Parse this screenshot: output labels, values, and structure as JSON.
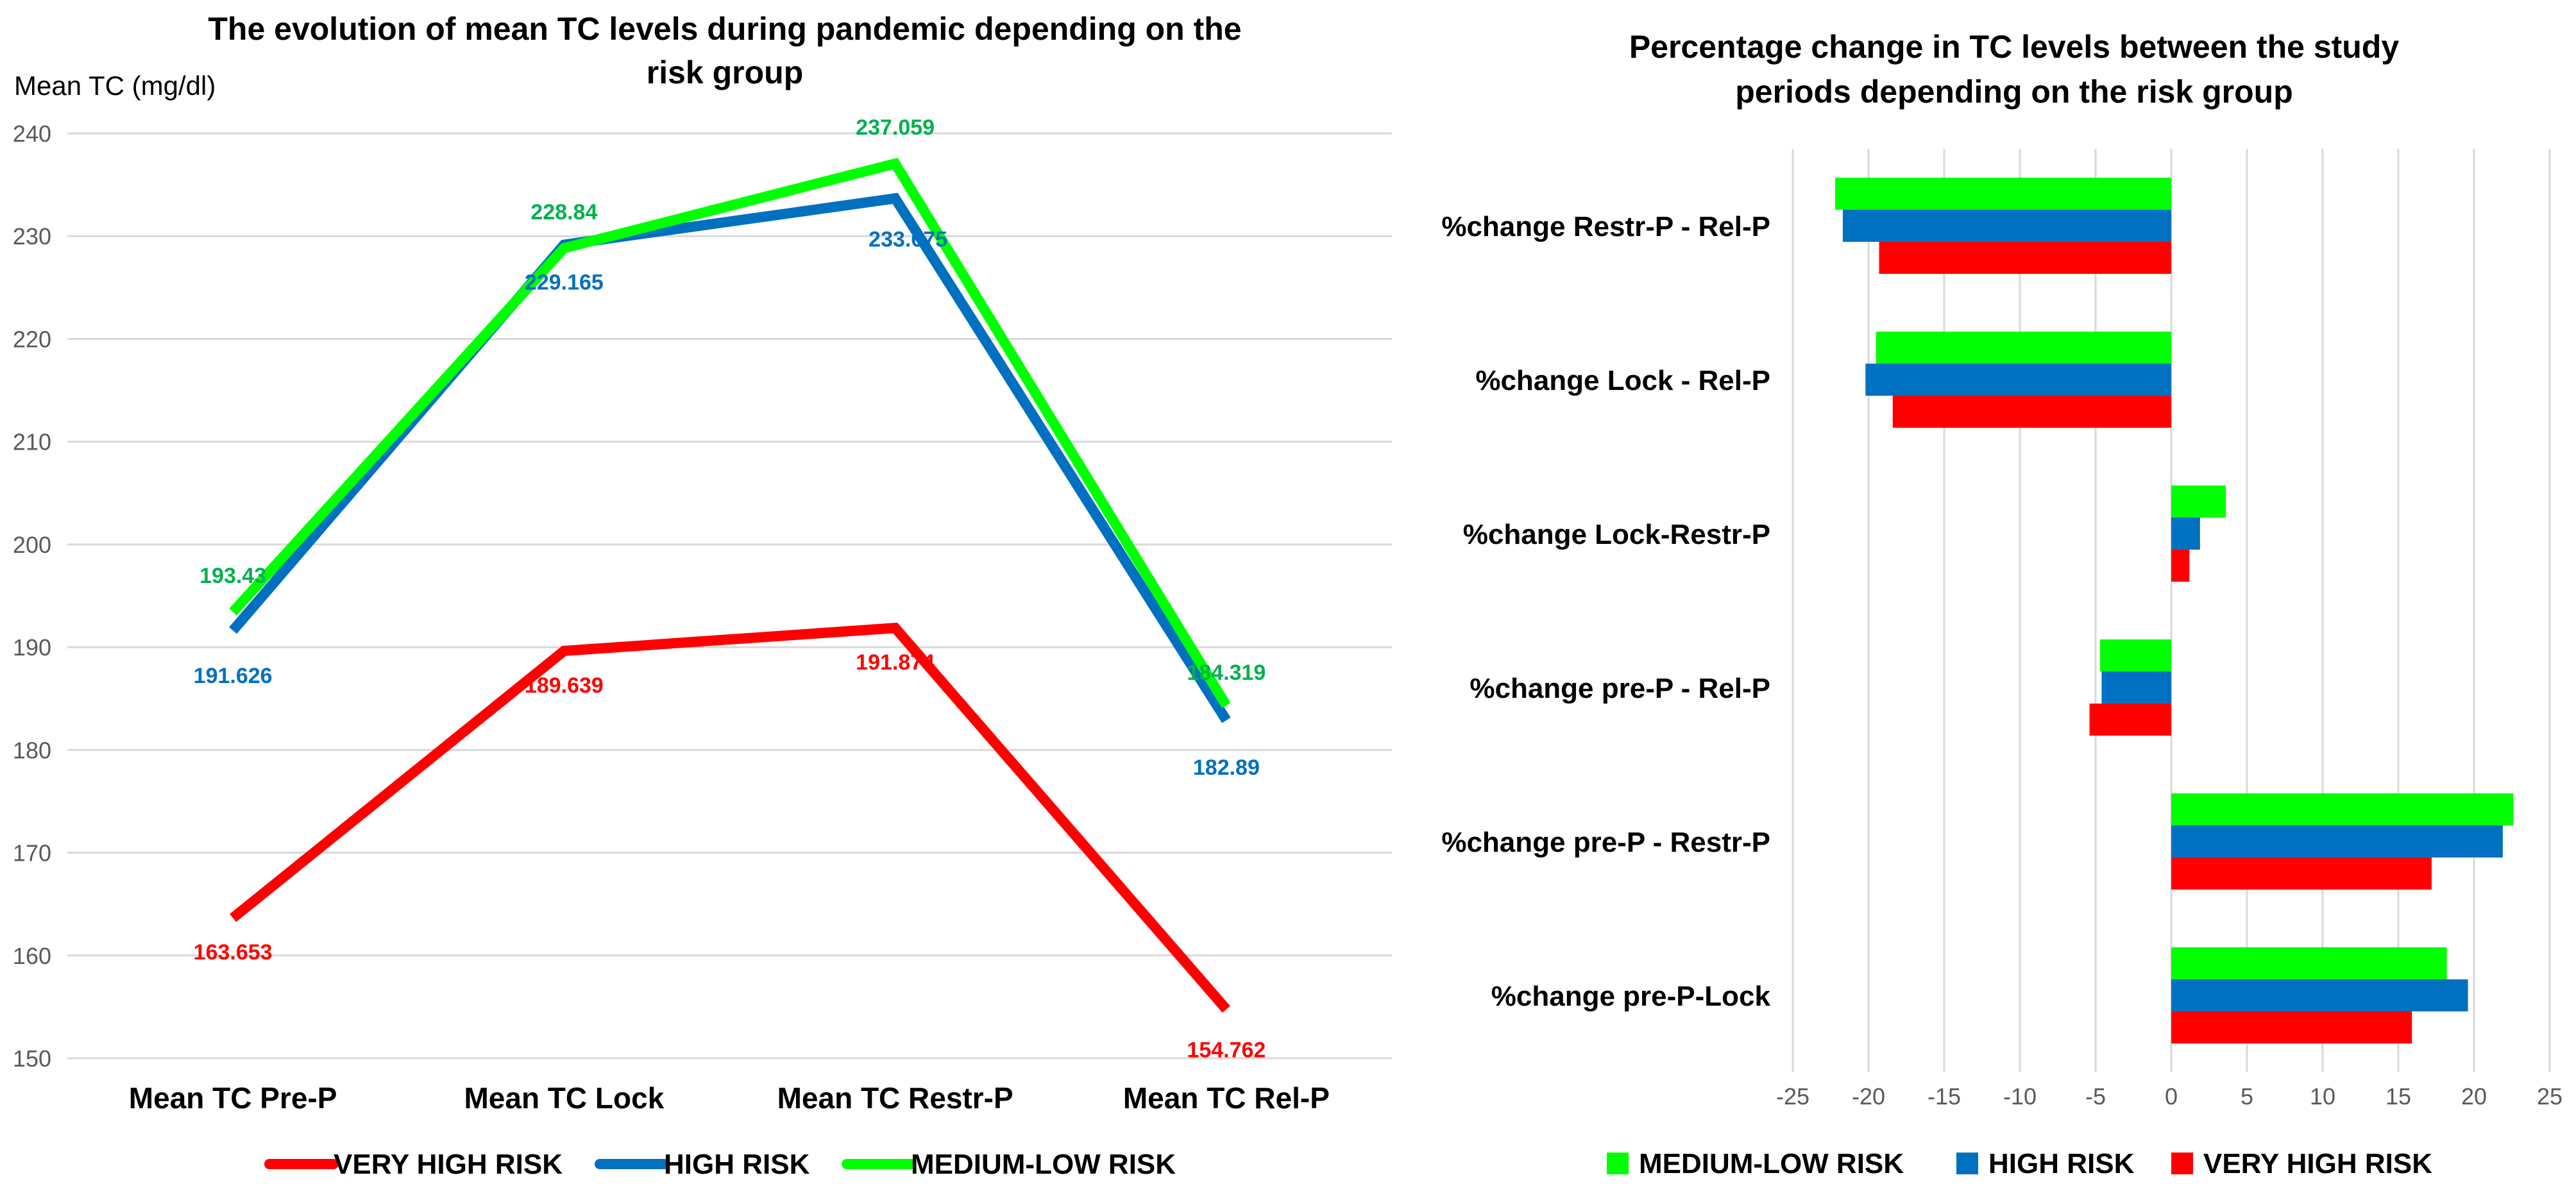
{
  "colors": {
    "very_high": "#ff0000",
    "high": "#0070c0",
    "medium_low": "#00ff00",
    "medium_low_label": "#00b050",
    "grid": "#d9d9d9",
    "tick": "#595959"
  },
  "chart_data": [
    {
      "type": "line",
      "title": "The evolution of mean TC levels during pandemic depending on the risk group",
      "title_lines": [
        "The evolution of mean TC levels during pandemic depending on the",
        "risk group"
      ],
      "ylabel": "Mean TC (mg/dl)",
      "xlabel": "",
      "ylim": [
        150,
        240
      ],
      "yticks": [
        150,
        160,
        170,
        180,
        190,
        200,
        210,
        220,
        230,
        240
      ],
      "grid": true,
      "categories": [
        "Mean TC Pre-P",
        "Mean TC Lock",
        "Mean TC Restr-P",
        "Mean TC Rel-P"
      ],
      "series": [
        {
          "key": "very_high",
          "name": "VERY HIGH RISK",
          "values": [
            163.653,
            189.639,
            191.874,
            154.762
          ],
          "labels": [
            "163.653",
            "189.639",
            "191.874",
            "154.762"
          ]
        },
        {
          "key": "high",
          "name": "HIGH RISK",
          "values": [
            191.626,
            229.165,
            233.675,
            182.89
          ],
          "labels": [
            "191.626",
            "229.165",
            "233.675",
            "182.89"
          ]
        },
        {
          "key": "medium_low",
          "name": "MEDIUM-LOW RISK",
          "values": [
            193.43,
            228.84,
            237.059,
            184.319
          ],
          "labels": [
            "193.43",
            "228.84",
            "237.059",
            "184.319"
          ]
        }
      ],
      "legend": [
        "VERY HIGH RISK",
        "HIGH RISK",
        "MEDIUM-LOW RISK"
      ],
      "legend_position": "bottom"
    },
    {
      "type": "bar",
      "orientation": "horizontal",
      "title": "Percentage change in TC levels between the study periods depending on the risk group",
      "title_lines": [
        "Percentage change in TC levels between the study",
        "periods depending on the risk group"
      ],
      "xlim": [
        -25,
        25
      ],
      "xticks": [
        -25,
        -20,
        -15,
        -10,
        -5,
        0,
        5,
        10,
        15,
        20,
        25
      ],
      "grid": true,
      "categories": [
        "%change Restr-P - Rel-P",
        "%change Lock - Rel-P",
        "%change Lock-Restr-P",
        "%change pre-P - Rel-P",
        "%change pre-P - Restr-P",
        "%change pre-P-Lock"
      ],
      "series": [
        {
          "key": "medium_low",
          "name": "MEDIUM-LOW RISK",
          "values": [
            -22.2,
            -19.5,
            3.6,
            -4.7,
            22.6,
            18.2
          ]
        },
        {
          "key": "high",
          "name": "HIGH RISK",
          "values": [
            -21.7,
            -20.2,
            1.9,
            -4.6,
            21.9,
            19.6
          ]
        },
        {
          "key": "very_high",
          "name": "VERY HIGH RISK",
          "values": [
            -19.3,
            -18.4,
            1.2,
            -5.4,
            17.2,
            15.9
          ]
        }
      ],
      "legend": [
        "MEDIUM-LOW RISK",
        "HIGH RISK",
        "VERY HIGH RISK"
      ],
      "legend_position": "bottom"
    }
  ]
}
